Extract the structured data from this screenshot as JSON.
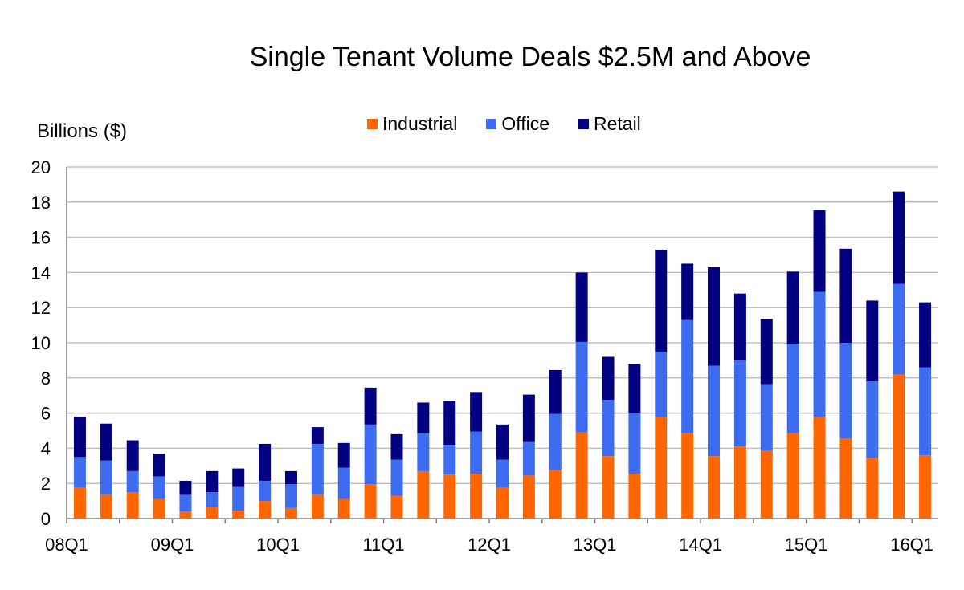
{
  "chart_data": {
    "type": "bar",
    "stacked": true,
    "title": "Single Tenant Volume Deals $2.5M and Above",
    "ylabel": "Billions ($)",
    "xlabel": "",
    "ylim": [
      0,
      20
    ],
    "yticks": [
      0,
      2,
      4,
      6,
      8,
      10,
      12,
      14,
      16,
      18,
      20
    ],
    "grid": true,
    "legend_position": "top-center",
    "categories": [
      "08Q1",
      "08Q2",
      "08Q3",
      "08Q4",
      "09Q1",
      "09Q2",
      "09Q3",
      "09Q4",
      "10Q1",
      "10Q2",
      "10Q3",
      "10Q4",
      "11Q1",
      "11Q2",
      "11Q3",
      "11Q4",
      "12Q1",
      "12Q2",
      "12Q3",
      "12Q4",
      "13Q1",
      "13Q2",
      "13Q3",
      "13Q4",
      "14Q1",
      "14Q2",
      "14Q3",
      "14Q4",
      "15Q1",
      "15Q2",
      "15Q3",
      "15Q4",
      "16Q1"
    ],
    "x_tick_labels": [
      "08Q1",
      "09Q1",
      "10Q1",
      "11Q1",
      "12Q1",
      "13Q1",
      "14Q1",
      "15Q1",
      "16Q1"
    ],
    "series": [
      {
        "name": "Industrial",
        "color": "#FF6600",
        "values": [
          1.75,
          1.35,
          1.5,
          1.1,
          0.4,
          0.65,
          0.45,
          1.0,
          0.6,
          1.35,
          1.1,
          1.95,
          1.3,
          2.7,
          2.5,
          2.55,
          1.75,
          2.45,
          2.75,
          4.9,
          3.55,
          2.55,
          5.8,
          4.85,
          3.55,
          4.1,
          3.85,
          4.85,
          5.8,
          4.55,
          3.45,
          8.2,
          3.6
        ]
      },
      {
        "name": "Office",
        "color": "#3D6CF0",
        "values": [
          1.75,
          1.95,
          1.2,
          1.3,
          0.95,
          0.85,
          1.35,
          1.15,
          1.35,
          2.9,
          1.8,
          3.4,
          2.05,
          2.15,
          1.7,
          2.4,
          1.6,
          1.9,
          3.2,
          5.15,
          3.2,
          3.45,
          3.7,
          6.45,
          5.15,
          4.9,
          3.8,
          5.1,
          7.1,
          5.45,
          4.35,
          5.15,
          5.0
        ]
      },
      {
        "name": "Retail",
        "color": "#000080",
        "values": [
          2.3,
          2.1,
          1.75,
          1.3,
          0.8,
          1.2,
          1.05,
          2.1,
          0.75,
          0.95,
          1.4,
          2.1,
          1.45,
          1.75,
          2.5,
          2.25,
          2.0,
          2.7,
          2.5,
          3.95,
          2.45,
          2.8,
          5.8,
          3.2,
          5.6,
          3.8,
          3.7,
          4.1,
          4.65,
          5.35,
          4.6,
          5.25,
          3.7
        ]
      }
    ]
  }
}
